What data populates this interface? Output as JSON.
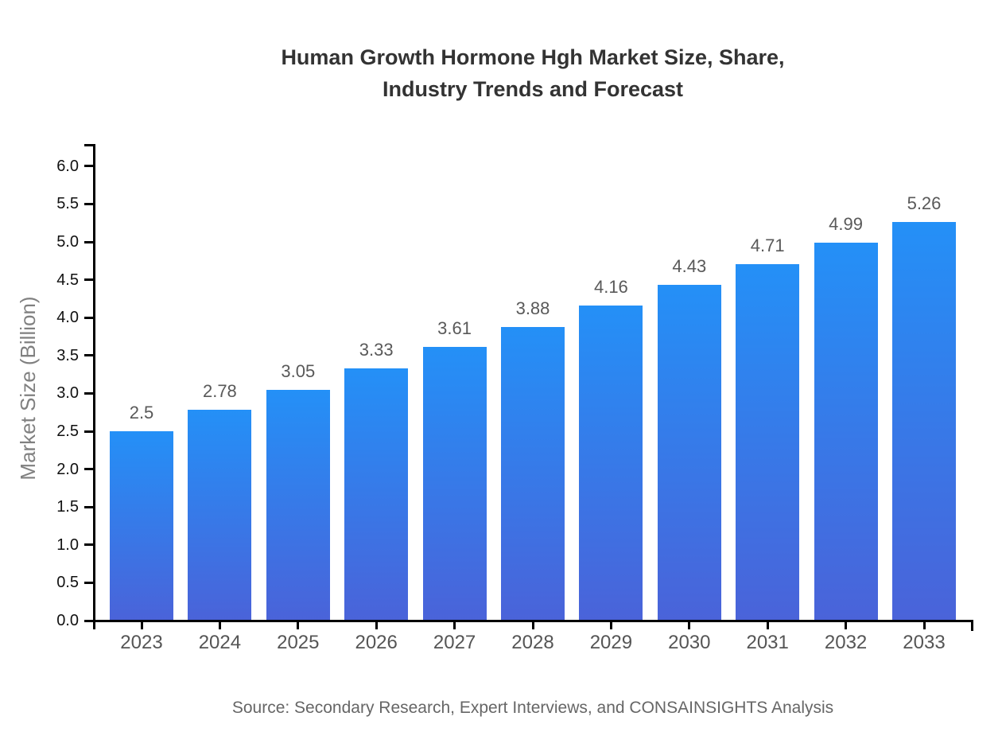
{
  "title": {
    "lines": [
      "Human Growth Hormone Hgh Market Size, Share,",
      "Industry Trends and Forecast"
    ]
  },
  "source": "Source: Secondary Research, Expert Interviews, and CONSAINSIGHTS Analysis",
  "chart_data": {
    "type": "bar",
    "title": "Human Growth Hormone Hgh Market Size, Share, Industry Trends and Forecast",
    "categories": [
      "2023",
      "2024",
      "2025",
      "2026",
      "2027",
      "2028",
      "2029",
      "2030",
      "2031",
      "2032",
      "2033"
    ],
    "values": [
      2.5,
      2.78,
      3.05,
      3.33,
      3.61,
      3.88,
      4.16,
      4.43,
      4.71,
      4.99,
      5.26
    ],
    "value_labels": [
      "2.5",
      "2.78",
      "3.05",
      "3.33",
      "3.61",
      "3.88",
      "4.16",
      "4.43",
      "4.71",
      "4.99",
      "5.26"
    ],
    "xlabel": "",
    "ylabel": "Market Size (Billion)",
    "ylim": [
      0,
      6.3
    ],
    "yticks": [
      0.0,
      0.5,
      1.0,
      1.5,
      2.0,
      2.5,
      3.0,
      3.5,
      4.0,
      4.5,
      5.0,
      5.5,
      6.0
    ],
    "grid": false,
    "legend_position": "none",
    "colors": {
      "bar_gradient_top": "#2490f7",
      "bar_gradient_bottom": "#4a63d9",
      "axis": "#000000",
      "y_tick_text": "#111111",
      "x_tick_text": "#555555",
      "value_label_text": "#595959",
      "title_text": "#333333",
      "ylabel_text": "#808080",
      "source_text": "#666666"
    }
  }
}
